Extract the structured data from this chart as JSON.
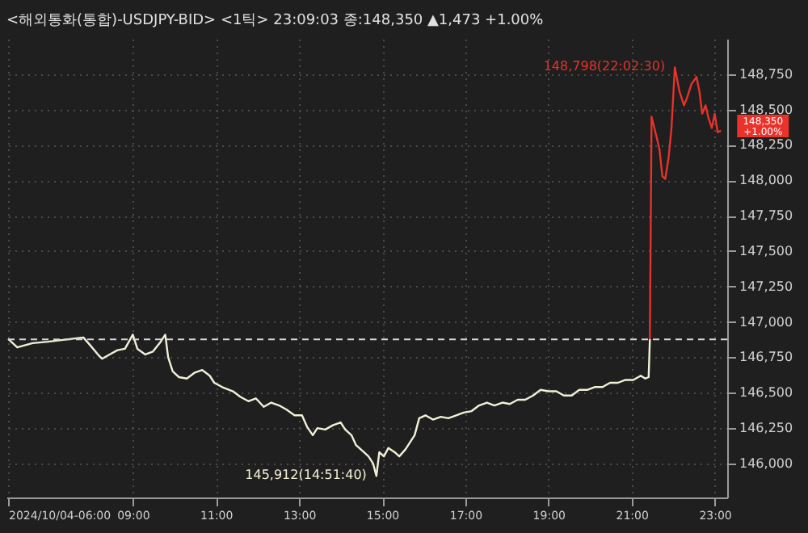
{
  "chart_data": {
    "type": "line",
    "title": "<해외통화(통합)-USDJPY-BID> <1틱> 23:09:03 종:148,350 ▲1,473 +1.00%",
    "series": [
      {
        "color": "#f2f0d8",
        "x": [
          6.0,
          6.22,
          6.59,
          6.96,
          7.52,
          7.81,
          7.96,
          8.19,
          8.26,
          8.44,
          8.63,
          8.81,
          9.0,
          9.11,
          9.3,
          9.48,
          9.67,
          9.78,
          9.85,
          9.96,
          10.11,
          10.3,
          10.48,
          10.67,
          10.85,
          10.96,
          11.15,
          11.41,
          11.59,
          11.78,
          11.96,
          12.15,
          12.33,
          12.52,
          12.7,
          12.89,
          13.07,
          13.19,
          13.33,
          13.44,
          13.63,
          13.81,
          14.0,
          14.11,
          14.26,
          14.37,
          14.56,
          14.67,
          14.78,
          14.86,
          14.93,
          15.04,
          15.15,
          15.3,
          15.41,
          15.56,
          15.67,
          15.78,
          15.89,
          16.04,
          16.22,
          16.41,
          16.59,
          16.78,
          16.96,
          17.15,
          17.33,
          17.52,
          17.7,
          17.89,
          18.07,
          18.26,
          18.44,
          18.63,
          18.81,
          19.0,
          19.19,
          19.37,
          19.56,
          19.74,
          19.93,
          20.11,
          20.3,
          20.48,
          20.67,
          20.85,
          21.04,
          21.22,
          21.33,
          21.41,
          21.44
        ],
        "values": [
          146880,
          146820,
          146850,
          146860,
          146880,
          146890,
          146840,
          146760,
          146740,
          146770,
          146800,
          146810,
          146910,
          146810,
          146770,
          146790,
          146860,
          146910,
          146750,
          146650,
          146610,
          146600,
          146640,
          146660,
          146620,
          146570,
          146540,
          146510,
          146470,
          146440,
          146460,
          146400,
          146430,
          146410,
          146380,
          146340,
          146340,
          146260,
          146200,
          146250,
          146240,
          146270,
          146290,
          146240,
          146200,
          146130,
          146080,
          146050,
          146000,
          145912,
          146080,
          146050,
          146110,
          146080,
          146050,
          146100,
          146150,
          146200,
          146320,
          146340,
          146310,
          146330,
          146320,
          146340,
          146360,
          146370,
          146410,
          146430,
          146410,
          146430,
          146420,
          146450,
          146450,
          146480,
          146520,
          146510,
          146510,
          146480,
          146480,
          146520,
          146520,
          146540,
          146540,
          146570,
          146570,
          146590,
          146590,
          146620,
          146600,
          146610,
          146880
        ]
      },
      {
        "color": "#e8322a",
        "x": [
          21.44,
          21.48,
          21.59,
          21.67,
          21.74,
          21.81,
          21.89,
          21.96,
          22.04,
          22.15,
          22.26,
          22.33,
          22.44,
          22.56,
          22.63,
          22.7,
          22.78,
          22.85,
          22.93,
          23.0,
          23.07,
          23.15
        ],
        "values": [
          146880,
          148450,
          148320,
          148220,
          148030,
          148010,
          148160,
          148370,
          148798,
          148630,
          148530,
          148580,
          148680,
          148730,
          148630,
          148470,
          148530,
          148440,
          148370,
          148470,
          148340,
          148350
        ]
      }
    ],
    "xlim": [
      5.96,
      23.3
    ],
    "xticks": [
      {
        "value": 6,
        "label": "2024/10/04-06:00"
      },
      {
        "value": 9,
        "label": "09:00"
      },
      {
        "value": 11,
        "label": "11:00"
      },
      {
        "value": 13,
        "label": "13:00"
      },
      {
        "value": 15,
        "label": "15:00"
      },
      {
        "value": 17,
        "label": "17:00"
      },
      {
        "value": 19,
        "label": "19:00"
      },
      {
        "value": 21,
        "label": "21:00"
      },
      {
        "value": 23,
        "label": "23:00"
      }
    ],
    "ylim": [
      145760,
      149000
    ],
    "yticks": [
      {
        "value": 146000,
        "label": "146,000"
      },
      {
        "value": 146250,
        "label": "146,250"
      },
      {
        "value": 146500,
        "label": "146,500"
      },
      {
        "value": 146750,
        "label": "146,750"
      },
      {
        "value": 147000,
        "label": "147,000"
      },
      {
        "value": 147250,
        "label": "147,250"
      },
      {
        "value": 147500,
        "label": "147,500"
      },
      {
        "value": 147750,
        "label": "147,750"
      },
      {
        "value": 148000,
        "label": "148,000"
      },
      {
        "value": 148250,
        "label": "148,250"
      },
      {
        "value": 148500,
        "label": "148,500"
      },
      {
        "value": 148750,
        "label": "148,750"
      }
    ],
    "grid": true,
    "line_style": "solid",
    "ref_lines": [
      {
        "axis": "y",
        "value": 146877,
        "color": "#d8d8d8",
        "line_style": "dashed"
      }
    ],
    "annotations": [
      {
        "text": "148,798(22:02:30)",
        "x": 22.04,
        "y": 148798
      },
      {
        "text": "145,912(14:51:40)",
        "x": 14.86,
        "y": 145912
      },
      {
        "text": "148,350 +1.00%",
        "x": 23.15,
        "y": 148350
      }
    ]
  }
}
